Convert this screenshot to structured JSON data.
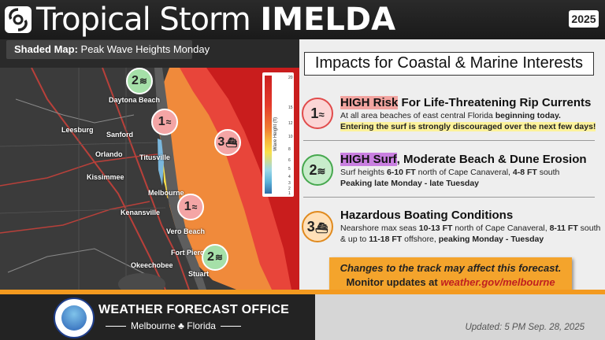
{
  "header": {
    "title_light": "Tropical Storm",
    "title_bold": "IMELDA",
    "year": "2025"
  },
  "map_label": {
    "bold": "Shaded Map:",
    "rest": "Peak Wave Heights Monday"
  },
  "map": {
    "legend_title": "Wave Height (ft)",
    "legend_ticks": [
      "20",
      "15",
      "12",
      "10",
      "8",
      "6",
      "5",
      "4",
      "3",
      "2",
      "1"
    ],
    "cities": [
      {
        "name": "Daytona Beach"
      },
      {
        "name": "Leesburg"
      },
      {
        "name": "Sanford"
      },
      {
        "name": "Orlando"
      },
      {
        "name": "Titusville"
      },
      {
        "name": "Kissimmee"
      },
      {
        "name": "Melbourne"
      },
      {
        "name": "Kenansville"
      },
      {
        "name": "Vero Beach"
      },
      {
        "name": "Fort Pierce"
      },
      {
        "name": "Okeechobee"
      },
      {
        "name": "Stuart"
      }
    ],
    "markers": [
      "2",
      "1",
      "3",
      "1",
      "2"
    ]
  },
  "panel": {
    "title": "Impacts for Coastal & Marine Interests",
    "impacts": [
      {
        "num": "1",
        "risk": "HIGH Risk",
        "head_rest": " For Life-Threatening Rip Currents",
        "line1_pre": "At all area beaches of east central Florida ",
        "line1_bold": "beginning today.",
        "line2": "Entering the surf is strongly discouraged over the next few days!"
      },
      {
        "num": "2",
        "risk": "HIGH Surf",
        "head_rest": ", Moderate Beach & Dune Erosion",
        "line1_a": "Surf heights ",
        "line1_b": "6-10 FT",
        "line1_c": " north of Cape Canaveral, ",
        "line1_d": "4-8 FT",
        "line1_e": " south",
        "line2": "Peaking late Monday - late Tuesday"
      },
      {
        "num": "3",
        "head": "Hazardous Boating Conditions",
        "line1_a": "Nearshore max seas ",
        "line1_b": "10-13 FT",
        "line1_c": " north of Cape Canaveral, ",
        "line1_d": "8-11 FT",
        "line1_e": " south",
        "line2_a": "& up to ",
        "line2_b": "11-18 FT",
        "line2_c": " offshore, ",
        "line2_d": "peaking Monday - Tuesday"
      }
    ],
    "notice_line1": "Changes to the track may affect this forecast.",
    "notice_line2_pre": "Monitor updates at ",
    "notice_link": "weather.gov/melbourne"
  },
  "footer": {
    "office": "WEATHER FORECAST OFFICE",
    "city": "Melbourne",
    "state": "Florida",
    "updated": "Updated: 5 PM Sep. 28, 2025"
  },
  "colors": {
    "accent_orange": "#f39a1f",
    "high_red": "#e14b4b",
    "mod_green": "#46a84e"
  }
}
